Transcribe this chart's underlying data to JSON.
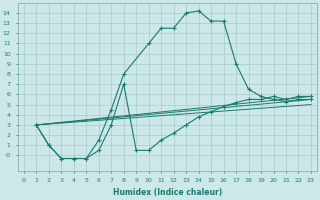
{
  "xlabel": "Humidex (Indice chaleur)",
  "xlim": [
    -0.5,
    23.5
  ],
  "ylim": [
    -1.5,
    15
  ],
  "xticks": [
    0,
    1,
    2,
    3,
    4,
    5,
    6,
    7,
    8,
    9,
    10,
    11,
    12,
    13,
    14,
    15,
    16,
    17,
    18,
    19,
    20,
    21,
    22,
    23
  ],
  "yticks": [
    0,
    1,
    2,
    3,
    4,
    5,
    6,
    7,
    8,
    9,
    10,
    11,
    12,
    13,
    14
  ],
  "ytick_labels": [
    "-0",
    "1",
    "2",
    "3",
    "4",
    "5",
    "6",
    "7",
    "8",
    "9",
    "10",
    "11",
    "12",
    "13",
    "14"
  ],
  "bg_color": "#cce8e8",
  "line_color": "#1a7a6e",
  "grid_color": "#aacccc",
  "curve1_x": [
    1,
    2,
    3,
    4,
    5,
    6,
    7,
    8,
    10,
    11,
    12,
    13,
    14,
    15,
    16,
    17,
    18,
    19,
    20,
    21,
    22,
    23
  ],
  "curve1_y": [
    3,
    1,
    -0.3,
    -0.3,
    -0.3,
    1.5,
    4.5,
    8,
    11,
    12.5,
    12.5,
    14,
    14.2,
    13.2,
    13.2,
    9,
    6.5,
    5.8,
    5.5,
    5.3,
    5.5,
    5.5
  ],
  "curve2_x": [
    1,
    2,
    3,
    4,
    5,
    6,
    7,
    8,
    9,
    10,
    11,
    12,
    13,
    14,
    15,
    16,
    17,
    18,
    19,
    20,
    21,
    22,
    23
  ],
  "curve2_y": [
    3,
    1,
    -0.3,
    -0.3,
    -0.3,
    0.5,
    3,
    7,
    0.5,
    0.5,
    1.5,
    2.2,
    3,
    3.8,
    4.3,
    4.8,
    5.2,
    5.5,
    5.5,
    5.8,
    5.5,
    5.8,
    5.8
  ],
  "line1_x": [
    1,
    23
  ],
  "line1_y": [
    3.0,
    5.8
  ],
  "line2_x": [
    1,
    23
  ],
  "line2_y": [
    3.0,
    5.5
  ],
  "line3_x": [
    1,
    23
  ],
  "line3_y": [
    3.0,
    5.0
  ]
}
